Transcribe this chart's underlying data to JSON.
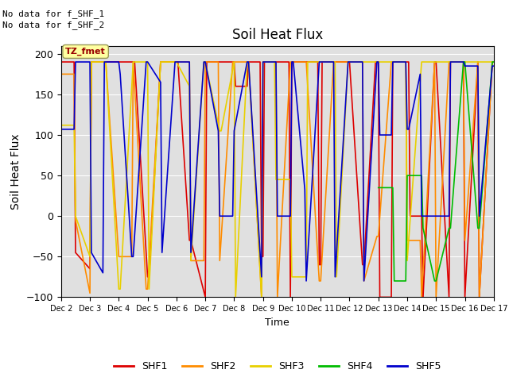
{
  "title": "Soil Heat Flux",
  "ylabel": "Soil Heat Flux",
  "xlabel": "Time",
  "annotation_line1": "No data for f_SHF_1",
  "annotation_line2": "No data for f_SHF_2",
  "box_label": "TZ_fmet",
  "ylim": [
    -100,
    210
  ],
  "xlim": [
    2,
    17
  ],
  "background_color": "#e0e0e0",
  "yticks": [
    -100,
    -50,
    0,
    50,
    100,
    150,
    200
  ],
  "xtick_vals": [
    2,
    3,
    4,
    5,
    6,
    7,
    8,
    9,
    10,
    11,
    12,
    13,
    14,
    15,
    16,
    17
  ],
  "xtick_labels": [
    "Dec 2",
    "Dec 3",
    "Dec 4",
    "Dec 5",
    "Dec 6",
    "Dec 7",
    "Dec 8",
    "Dec 9",
    "Dec 10",
    "Dec 11",
    "Dec 12",
    "Dec 13",
    "Dec 14",
    "Dec 15",
    "Dec 16",
    "Dec 17"
  ],
  "series": {
    "SHF1": {
      "color": "#dd0000",
      "x": [
        2.0,
        2.45,
        2.5,
        3.0,
        3.05,
        3.5,
        3.55,
        4.0,
        4.05,
        4.5,
        4.55,
        5.0,
        5.05,
        5.45,
        5.5,
        6.0,
        6.05,
        6.45,
        6.5,
        7.0,
        7.05,
        7.5,
        7.55,
        8.0,
        8.05,
        8.45,
        8.5,
        8.9,
        8.95,
        9.0,
        9.05,
        9.45,
        9.5,
        9.9,
        9.95,
        10.0,
        10.05,
        10.45,
        10.5,
        10.9,
        10.95,
        11.0,
        11.05,
        11.45,
        11.5,
        11.95,
        12.0,
        12.45,
        12.5,
        12.9,
        12.95,
        13.0,
        13.05,
        13.45,
        13.5,
        13.95,
        14.0,
        14.05,
        14.1,
        14.5,
        14.55,
        14.95,
        15.0,
        15.45,
        15.5,
        15.95,
        16.0,
        16.45,
        16.5,
        16.95,
        17.0
      ],
      "y": [
        190,
        190,
        -45,
        -65,
        190,
        190,
        190,
        190,
        190,
        190,
        190,
        -75,
        -75,
        190,
        190,
        190,
        190,
        -30,
        -30,
        -100,
        190,
        190,
        190,
        190,
        160,
        160,
        190,
        190,
        -50,
        -50,
        190,
        190,
        190,
        190,
        -100,
        190,
        190,
        190,
        190,
        190,
        -60,
        -60,
        190,
        190,
        190,
        190,
        190,
        -60,
        -60,
        190,
        190,
        190,
        -100,
        -100,
        190,
        190,
        190,
        190,
        0,
        0,
        -100,
        190,
        190,
        -100,
        190,
        190,
        -100,
        190,
        -100,
        190,
        190
      ]
    },
    "SHF2": {
      "color": "#ff8c00",
      "x": [
        2.0,
        2.45,
        2.5,
        3.0,
        3.05,
        3.5,
        3.55,
        4.0,
        4.05,
        4.45,
        4.5,
        4.95,
        5.0,
        5.45,
        5.5,
        5.95,
        6.0,
        6.45,
        6.5,
        6.95,
        7.0,
        7.45,
        7.5,
        7.95,
        8.0,
        8.45,
        8.5,
        8.95,
        9.0,
        9.45,
        9.5,
        9.95,
        10.0,
        10.45,
        10.5,
        10.95,
        11.0,
        11.45,
        11.5,
        11.95,
        12.0,
        12.45,
        12.5,
        12.95,
        13.0,
        13.45,
        13.5,
        13.95,
        14.0,
        14.45,
        14.5,
        14.95,
        15.0,
        15.45,
        15.5,
        15.95,
        16.0,
        16.45,
        16.5,
        16.95,
        17.0
      ],
      "y": [
        175,
        175,
        -5,
        -95,
        190,
        190,
        190,
        -50,
        -50,
        -50,
        190,
        -90,
        -90,
        190,
        190,
        190,
        190,
        190,
        -55,
        -55,
        190,
        190,
        -55,
        190,
        190,
        190,
        190,
        -100,
        190,
        190,
        -100,
        190,
        190,
        190,
        190,
        -80,
        -80,
        190,
        190,
        190,
        190,
        190,
        -80,
        -25,
        -25,
        190,
        190,
        190,
        -30,
        -30,
        -100,
        190,
        -100,
        190,
        190,
        190,
        -30,
        190,
        -100,
        190,
        190
      ]
    },
    "SHF3": {
      "color": "#e8d000",
      "x": [
        2.0,
        2.45,
        2.5,
        3.0,
        3.05,
        3.5,
        3.55,
        4.0,
        4.05,
        4.5,
        4.55,
        5.0,
        5.05,
        5.45,
        5.5,
        5.95,
        6.0,
        6.45,
        6.5,
        6.95,
        7.0,
        7.5,
        7.55,
        8.0,
        8.05,
        8.45,
        8.5,
        8.95,
        9.0,
        9.4,
        9.45,
        9.95,
        10.0,
        10.5,
        10.55,
        10.95,
        11.0,
        11.5,
        11.55,
        11.95,
        12.0,
        12.5,
        12.55,
        12.95,
        13.0,
        13.5,
        13.55,
        13.95,
        14.0,
        14.5,
        14.55,
        14.95,
        15.0,
        15.5,
        15.55,
        15.95,
        16.0,
        16.5,
        16.55,
        16.95,
        17.0
      ],
      "y": [
        112,
        112,
        0,
        -50,
        190,
        190,
        190,
        -90,
        -90,
        190,
        190,
        190,
        -90,
        190,
        190,
        190,
        190,
        160,
        -55,
        190,
        190,
        105,
        105,
        190,
        -100,
        190,
        190,
        -100,
        190,
        190,
        45,
        45,
        -75,
        -75,
        190,
        190,
        190,
        190,
        -75,
        190,
        190,
        190,
        190,
        190,
        190,
        190,
        190,
        190,
        -55,
        190,
        190,
        190,
        190,
        190,
        190,
        190,
        190,
        190,
        190,
        190,
        190
      ]
    },
    "SHF4": {
      "color": "#00bb00",
      "x": [
        13.0,
        13.5,
        13.55,
        13.95,
        14.0,
        14.5,
        14.55,
        14.95,
        15.0,
        15.45,
        15.5,
        15.95,
        16.0,
        16.45,
        16.5,
        16.95,
        17.0
      ],
      "y": [
        35,
        35,
        -80,
        -80,
        50,
        50,
        -15,
        -80,
        -80,
        -15,
        -15,
        190,
        190,
        -15,
        -15,
        190,
        190
      ]
    },
    "SHF5": {
      "color": "#0000cc",
      "x": [
        2.0,
        2.45,
        2.5,
        3.0,
        3.05,
        3.45,
        3.5,
        4.0,
        4.05,
        4.45,
        4.5,
        4.95,
        5.0,
        5.45,
        5.5,
        5.95,
        6.0,
        6.45,
        6.5,
        6.95,
        7.0,
        7.45,
        7.5,
        7.95,
        8.0,
        8.45,
        8.5,
        8.95,
        9.0,
        9.45,
        9.5,
        9.95,
        10.0,
        10.05,
        10.45,
        10.5,
        10.95,
        11.0,
        11.45,
        11.5,
        11.95,
        12.0,
        12.45,
        12.5,
        12.95,
        13.0,
        13.05,
        13.45,
        13.5,
        13.95,
        14.0,
        14.05,
        14.45,
        14.5,
        14.95,
        15.0,
        15.45,
        15.5,
        15.95,
        16.0,
        16.45,
        16.5,
        16.95,
        17.0
      ],
      "y": [
        107,
        107,
        190,
        190,
        -45,
        -70,
        190,
        190,
        175,
        -50,
        -50,
        190,
        190,
        165,
        -45,
        190,
        190,
        190,
        -45,
        190,
        190,
        105,
        0,
        0,
        105,
        190,
        190,
        -75,
        190,
        190,
        0,
        0,
        190,
        190,
        33,
        -80,
        190,
        190,
        190,
        -75,
        190,
        190,
        190,
        -80,
        190,
        190,
        100,
        100,
        190,
        190,
        107,
        107,
        175,
        0,
        0,
        0,
        0,
        190,
        190,
        185,
        185,
        0,
        185,
        185
      ]
    }
  },
  "legend": [
    {
      "label": "SHF1",
      "color": "#dd0000"
    },
    {
      "label": "SHF2",
      "color": "#ff8c00"
    },
    {
      "label": "SHF3",
      "color": "#e8d000"
    },
    {
      "label": "SHF4",
      "color": "#00bb00"
    },
    {
      "label": "SHF5",
      "color": "#0000cc"
    }
  ]
}
